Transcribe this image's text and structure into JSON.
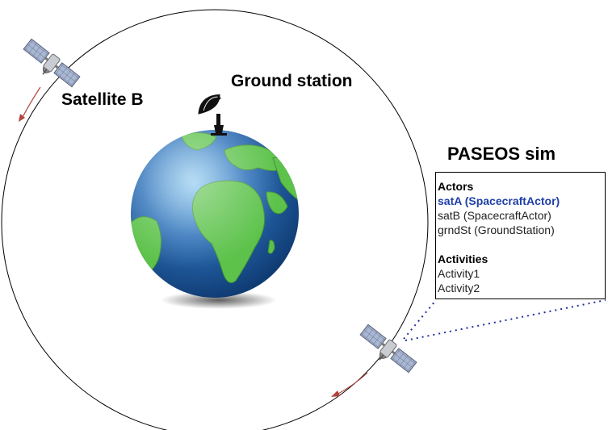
{
  "labels": {
    "satellite_b": "Satellite B",
    "ground_station": "Ground station",
    "sim_title": "PASEOS sim"
  },
  "panel": {
    "actors_heading": "Actors",
    "actors": [
      {
        "label": "satA (SpacecraftActor)",
        "selected": true
      },
      {
        "label": "satB (SpacecraftActor)",
        "selected": false
      },
      {
        "label": "grndSt (GroundStation)",
        "selected": false
      }
    ],
    "activities_heading": "Activities",
    "activities": [
      "Activity1",
      "Activity2"
    ]
  },
  "icons": [
    "satellite-b-icon",
    "satellite-a-icon",
    "ground-station-dish-icon",
    "earth-globe-icon"
  ],
  "colors": {
    "selected_actor": "#1f3fa8",
    "orbit_arrow": "#b0443a",
    "link_line": "#1f2fa0",
    "ocean": "#2a6fb8",
    "land": "#5cc24a"
  }
}
